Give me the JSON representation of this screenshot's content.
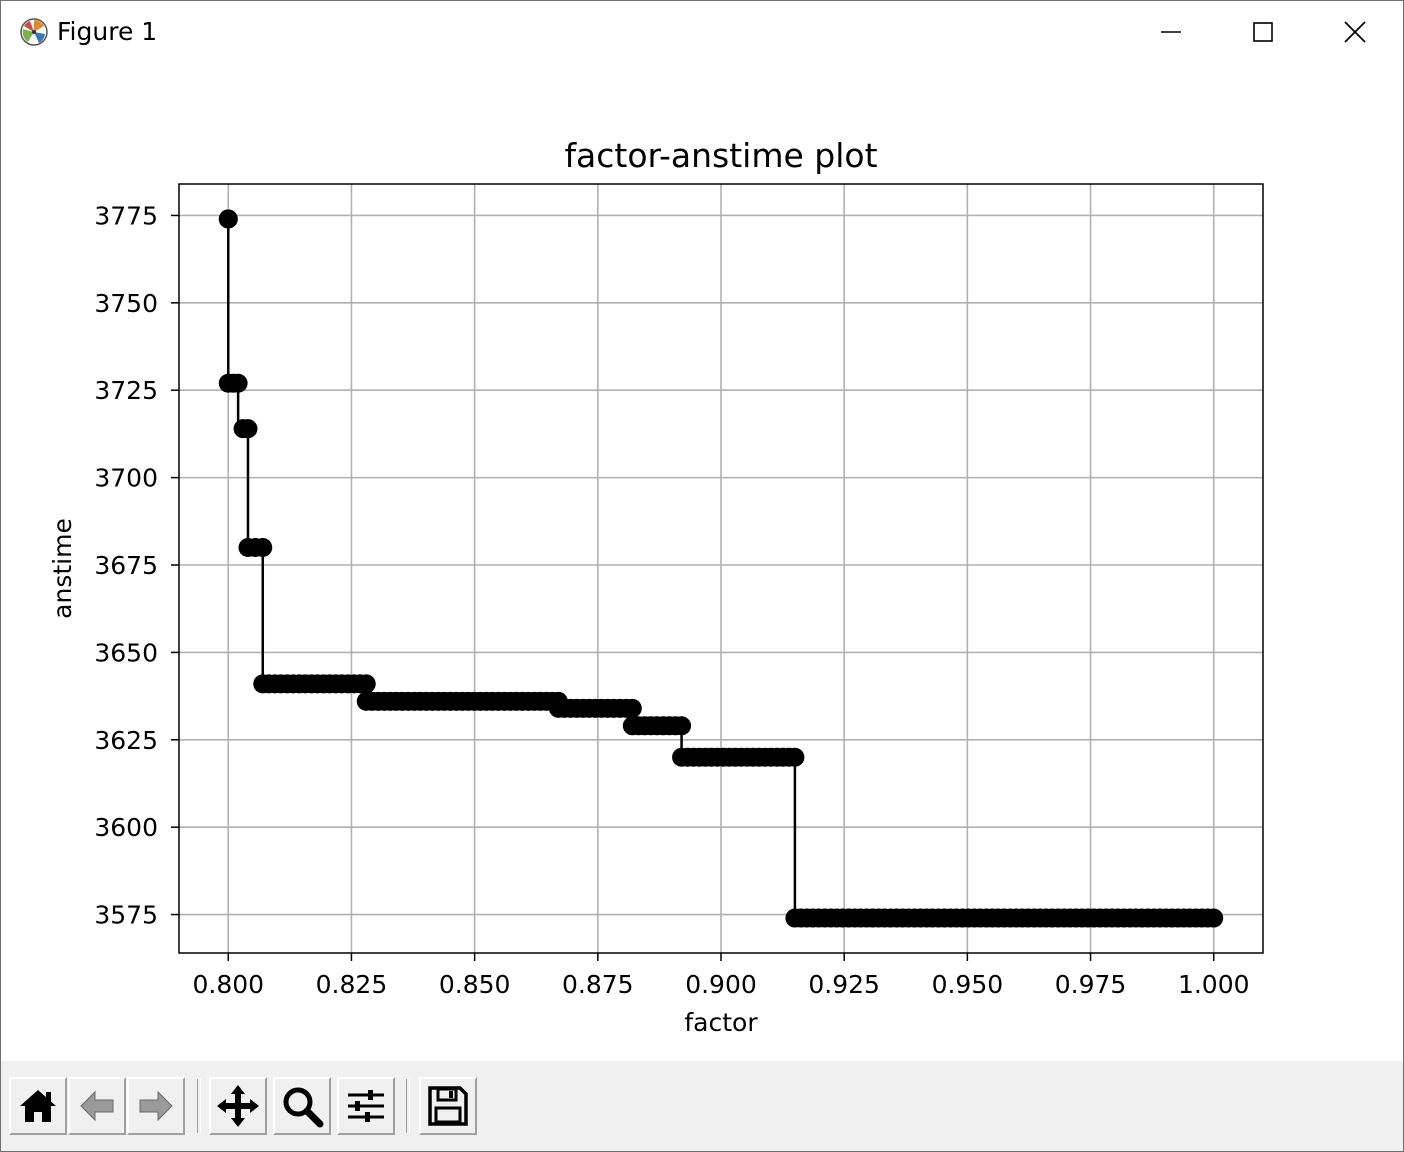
{
  "window": {
    "title": "Figure 1",
    "controls": {
      "minimize": "minimize",
      "maximize": "maximize",
      "close": "close"
    }
  },
  "toolbar": {
    "buttons": [
      {
        "name": "home-button",
        "icon": "home-icon"
      },
      {
        "name": "back-button",
        "icon": "arrow-left-icon"
      },
      {
        "name": "forward-button",
        "icon": "arrow-right-icon"
      },
      {
        "name": "pan-button",
        "icon": "move-icon"
      },
      {
        "name": "zoom-button",
        "icon": "magnifier-icon"
      },
      {
        "name": "configure-subplots-button",
        "icon": "sliders-icon"
      },
      {
        "name": "save-button",
        "icon": "floppy-disk-icon"
      }
    ]
  },
  "chart_data": {
    "type": "line",
    "title": "factor-anstime plot",
    "xlabel": "factor",
    "ylabel": "anstime",
    "xlim": [
      0.79,
      1.01
    ],
    "ylim": [
      3564,
      3784
    ],
    "xticks": [
      0.8,
      0.825,
      0.85,
      0.875,
      0.9,
      0.925,
      0.95,
      0.975,
      1.0
    ],
    "xtick_labels": [
      "0.800",
      "0.825",
      "0.850",
      "0.875",
      "0.900",
      "0.925",
      "0.950",
      "0.975",
      "1.000"
    ],
    "yticks": [
      3575,
      3600,
      3625,
      3650,
      3675,
      3700,
      3725,
      3750,
      3775
    ],
    "ytick_labels": [
      "3575",
      "3600",
      "3625",
      "3650",
      "3675",
      "3700",
      "3725",
      "3750",
      "3775"
    ],
    "grid": true,
    "line_color": "#000000",
    "marker": "circle",
    "step_segments": [
      {
        "x_start": 0.8,
        "x_end": 0.8,
        "y": 3774
      },
      {
        "x_start": 0.8,
        "x_end": 0.802,
        "y": 3727
      },
      {
        "x_start": 0.803,
        "x_end": 0.804,
        "y": 3714
      },
      {
        "x_start": 0.804,
        "x_end": 0.807,
        "y": 3680
      },
      {
        "x_start": 0.807,
        "x_end": 0.828,
        "y": 3641
      },
      {
        "x_start": 0.828,
        "x_end": 0.867,
        "y": 3636
      },
      {
        "x_start": 0.867,
        "x_end": 0.882,
        "y": 3634
      },
      {
        "x_start": 0.882,
        "x_end": 0.892,
        "y": 3629
      },
      {
        "x_start": 0.892,
        "x_end": 0.915,
        "y": 3620
      },
      {
        "x_start": 0.915,
        "x_end": 1.0,
        "y": 3574
      }
    ]
  }
}
